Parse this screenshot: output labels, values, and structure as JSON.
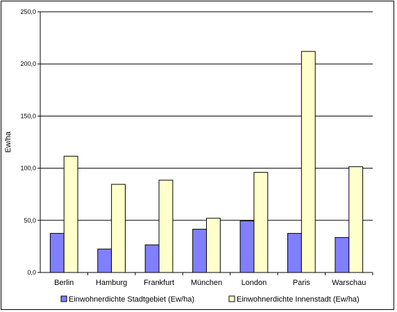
{
  "chart_data": {
    "type": "bar",
    "ylabel": "Ew/ha",
    "ylim": [
      0,
      250
    ],
    "yticks": [
      "0,0",
      "50,0",
      "100,0",
      "150,0",
      "200,0",
      "250,0"
    ],
    "grid": true,
    "legend_position": "bottom",
    "categories": [
      "Berlin",
      "Hamburg",
      "Frankfurt",
      "München",
      "London",
      "Paris",
      "Warschau"
    ],
    "series": [
      {
        "name": "Einwohnerdichte Stadtgebiet (Ew/ha)",
        "color": "#8080FF",
        "values": [
          37.5,
          22.5,
          26.5,
          41.5,
          49.5,
          37.5,
          33.5
        ]
      },
      {
        "name": "Einwohnerdichte Innenstadt (Ew/ha)",
        "color": "#FFFFCC",
        "values": [
          111.5,
          84.5,
          88.5,
          52,
          96,
          212,
          101.5
        ]
      }
    ]
  }
}
